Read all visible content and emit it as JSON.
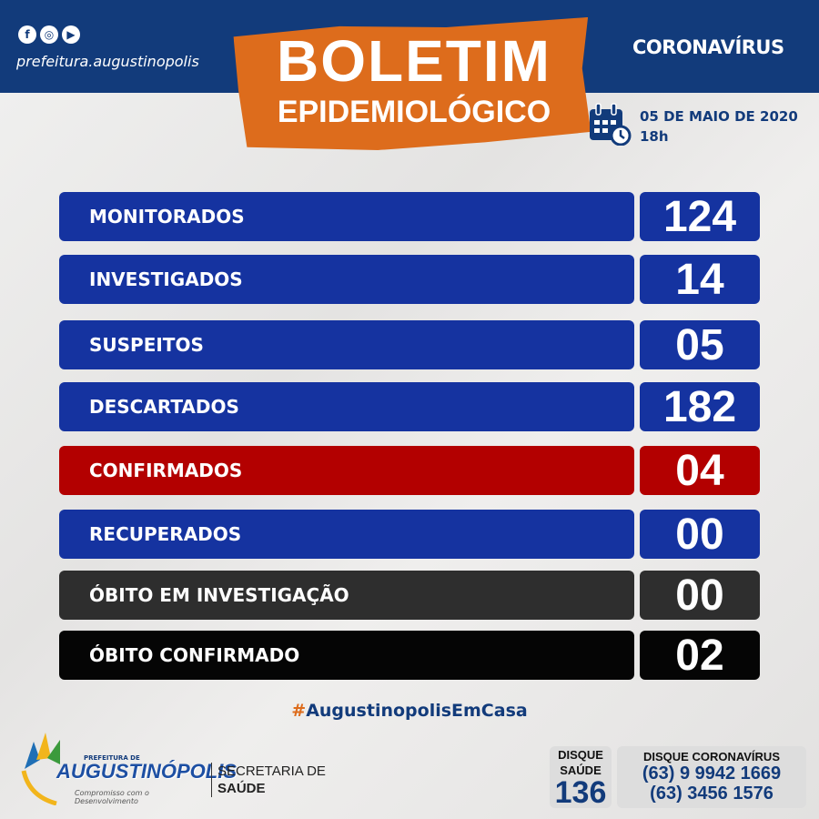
{
  "header": {
    "social_icons": [
      "facebook-icon",
      "instagram-icon",
      "youtube-icon"
    ],
    "handle": "prefeitura.augustinopolis",
    "campaign": "CORONAVÍRUS",
    "title_line1": "BOLETIM",
    "title_line2": "EPIDEMIOLÓGICO",
    "date": "05 DE MAIO DE 2020",
    "time": "18h"
  },
  "colors": {
    "navy": "#123b7b",
    "orange": "#dd6c1c",
    "blue": "#1533a0",
    "red": "#b30000",
    "dark_gray": "#2e2e2e",
    "black": "#050505"
  },
  "rows": [
    {
      "label": "MONITORADOS",
      "value": "124",
      "color": "#1533a0"
    },
    {
      "label": "INVESTIGADOS",
      "value": "14",
      "color": "#1533a0"
    },
    {
      "label": "SUSPEITOS",
      "value": "05",
      "color": "#1533a0"
    },
    {
      "label": "DESCARTADOS",
      "value": "182",
      "color": "#1533a0"
    },
    {
      "label": "CONFIRMADOS",
      "value": "04",
      "color": "#b30000"
    },
    {
      "label": "RECUPERADOS",
      "value": "00",
      "color": "#1533a0"
    },
    {
      "label": "ÓBITO EM INVESTIGAÇÃO",
      "value": "00",
      "color": "#2e2e2e"
    },
    {
      "label": "ÓBITO CONFIRMADO",
      "value": "02",
      "color": "#050505"
    }
  ],
  "footer": {
    "hashtag_symbol": "#",
    "hashtag": "AugustinopolisEmCasa",
    "logo_pre": "PREFEITURA DE",
    "logo_name": "AUGUSTINÓPOLIS",
    "logo_slogan": "Compromisso com o Desenvolvimento",
    "secretaria_1": "SECRETARIA DE",
    "secretaria_2": "SAÚDE",
    "disque_saude_1": "DISQUE",
    "disque_saude_2": "SAÚDE",
    "disque_saude_number": "136",
    "disque_corona_title": "DISQUE CORONAVÍRUS",
    "phone_1": "(63) 9 9942 1669",
    "phone_2": "(63) 3456 1576"
  }
}
